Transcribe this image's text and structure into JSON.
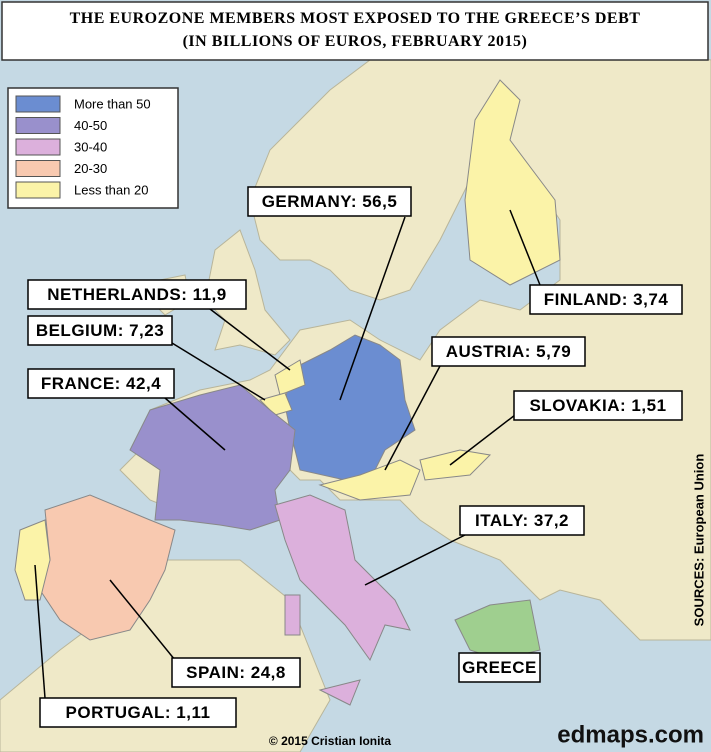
{
  "title": {
    "line1": "THE EUROZONE MEMBERS MOST EXPOSED TO THE GREECE’S DEBT",
    "line2": "(IN BILLIONS OF EUROS, FEBRUARY 2015)"
  },
  "legend": {
    "items": [
      {
        "label": "More than 50",
        "color": "#6b8dd1"
      },
      {
        "label": "40-50",
        "color": "#9990cc"
      },
      {
        "label": "30-40",
        "color": "#dcb0dc"
      },
      {
        "label": "20-30",
        "color": "#f8c9b0"
      },
      {
        "label": "Less than 20",
        "color": "#fbf3a8"
      }
    ]
  },
  "countries": [
    {
      "label": "GERMANY: 56,5",
      "color": "#6b8dd1"
    },
    {
      "label": "FINLAND: 3,74",
      "color": "#fbf3a8"
    },
    {
      "label": "NETHERLANDS: 11,9",
      "color": "#fbf3a8"
    },
    {
      "label": "BELGIUM: 7,23",
      "color": "#fbf3a8"
    },
    {
      "label": "AUSTRIA: 5,79",
      "color": "#fbf3a8"
    },
    {
      "label": "FRANCE: 42,4",
      "color": "#9990cc"
    },
    {
      "label": "SLOVAKIA: 1,51",
      "color": "#fbf3a8"
    },
    {
      "label": "ITALY: 37,2",
      "color": "#dcb0dc"
    },
    {
      "label": "SPAIN: 24,8",
      "color": "#f8c9b0"
    },
    {
      "label": "PORTUGAL: 1,11",
      "color": "#fbf3a8"
    },
    {
      "label": "GREECE",
      "color": "#9fcf8f"
    }
  ],
  "source": "SOURCES: European Union",
  "credit": "© 2015 Cristian Ionita",
  "site": "edmaps.com"
}
